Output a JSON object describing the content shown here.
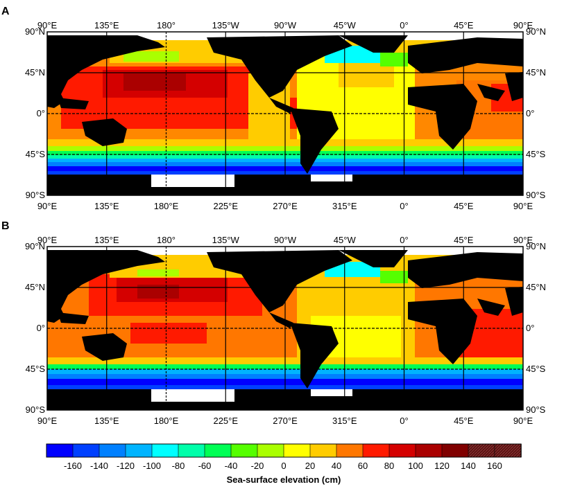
{
  "panels": [
    {
      "letter": "A",
      "top_ticks": [
        "90°E",
        "135°E",
        "180°",
        "135°W",
        "90°W",
        "45°W",
        "0°",
        "45°E",
        "90°E"
      ],
      "bottom_ticks": [
        "90°E",
        "135°E",
        "180°E",
        "225°E",
        "270°E",
        "315°E",
        "0°",
        "45°E",
        "90°E"
      ],
      "left_ticks": [
        "90°N",
        "45°N",
        "0°",
        "45°S",
        "90°S"
      ],
      "right_ticks": [
        "90°N",
        "45°N",
        "0°",
        "45°S",
        "90°S"
      ]
    },
    {
      "letter": "B",
      "top_ticks": [
        "90°E",
        "135°E",
        "180°",
        "135°W",
        "90°W",
        "45°W",
        "0°",
        "45°E",
        "90°E"
      ],
      "bottom_ticks": [
        "90°E",
        "135°E",
        "180°E",
        "225°E",
        "270°E",
        "315°E",
        "0°",
        "45°E",
        "90°E"
      ],
      "left_ticks": [
        "90°N",
        "45°N",
        "0°",
        "45°S",
        "90°S"
      ],
      "right_ticks": [
        "90°N",
        "45°N",
        "0°",
        "45°S",
        "90°S"
      ]
    }
  ],
  "colorbar": {
    "title": "Sea-surface elevation (cm)",
    "tick_labels": [
      "-160",
      "-140",
      "-120",
      "-100",
      "-80",
      "-60",
      "-40",
      "-20",
      "0",
      "20",
      "40",
      "60",
      "80",
      "100",
      "120",
      "140",
      "160"
    ],
    "colors": [
      "#0000ff",
      "#0040ff",
      "#0080ff",
      "#00b4ff",
      "#00ffff",
      "#00ffaa",
      "#00ff55",
      "#55ff00",
      "#aaff00",
      "#ffff00",
      "#ffcc00",
      "#ff7700",
      "#ff1a00",
      "#d40000",
      "#aa0000",
      "#800000",
      "#5a0000",
      "#6a1a1a"
    ]
  },
  "colors": {
    "land": "#000000",
    "ice_nodata": "#ffffff",
    "gridlines": "#000000"
  }
}
